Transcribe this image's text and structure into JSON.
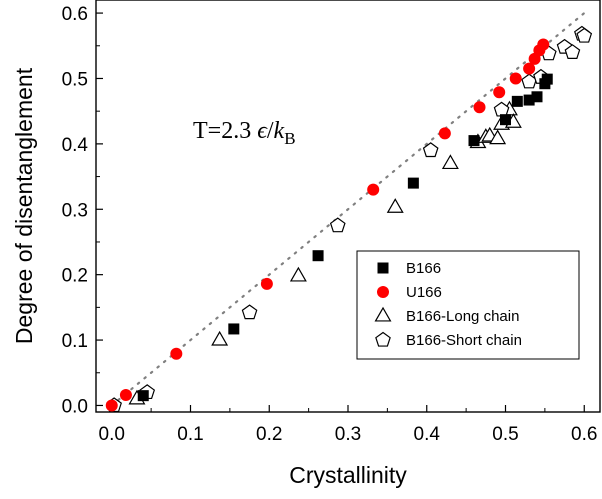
{
  "chart_data": {
    "type": "scatter",
    "title": "",
    "xlabel": "Crystallinity",
    "ylabel": "Degree of disentanglement",
    "xlim": [
      -0.02,
      0.62
    ],
    "ylim": [
      -0.01,
      0.62
    ],
    "xticks": [
      0.0,
      0.1,
      0.2,
      0.3,
      0.4,
      0.5,
      0.6
    ],
    "yticks": [
      0.0,
      0.1,
      0.2,
      0.3,
      0.4,
      0.5,
      0.6
    ],
    "xtick_labels": [
      "0.0",
      "0.1",
      "0.2",
      "0.3",
      "0.4",
      "0.5",
      "0.6"
    ],
    "ytick_labels": [
      "0.0",
      "0.1",
      "0.2",
      "0.3",
      "0.4",
      "0.5",
      "0.6"
    ],
    "grid": false,
    "legend_position": "bottom-right",
    "annotation": {
      "prefix": "T=2.3 ",
      "epsilon": "ϵ",
      "slash": "/",
      "k": "k",
      "sub": "B"
    },
    "reference_line": {
      "style": "dotted",
      "color": "#808080",
      "x": [
        0.0,
        0.6
      ],
      "y": [
        0.0,
        0.6
      ]
    },
    "series": [
      {
        "name": "B166",
        "marker": "square",
        "color": "#000000",
        "filled": true,
        "points": [
          [
            0.04,
            0.015
          ],
          [
            0.155,
            0.117
          ],
          [
            0.262,
            0.229
          ],
          [
            0.383,
            0.34
          ],
          [
            0.46,
            0.405
          ],
          [
            0.5,
            0.437
          ],
          [
            0.515,
            0.465
          ],
          [
            0.53,
            0.467
          ],
          [
            0.54,
            0.472
          ],
          [
            0.55,
            0.492
          ],
          [
            0.553,
            0.499
          ]
        ]
      },
      {
        "name": "U166",
        "marker": "circle",
        "color": "#ff0000",
        "filled": true,
        "points": [
          [
            0.0,
            0.0
          ],
          [
            0.018,
            0.016
          ],
          [
            0.082,
            0.079
          ],
          [
            0.197,
            0.186
          ],
          [
            0.332,
            0.33
          ],
          [
            0.423,
            0.416
          ],
          [
            0.467,
            0.456
          ],
          [
            0.492,
            0.479
          ],
          [
            0.513,
            0.5
          ],
          [
            0.53,
            0.515
          ],
          [
            0.537,
            0.53
          ],
          [
            0.543,
            0.543
          ],
          [
            0.548,
            0.552
          ]
        ]
      },
      {
        "name": "B166-Long chain",
        "marker": "triangle",
        "color": "#000000",
        "filled": false,
        "points": [
          [
            0.032,
            0.01
          ],
          [
            0.137,
            0.1
          ],
          [
            0.237,
            0.198
          ],
          [
            0.36,
            0.303
          ],
          [
            0.43,
            0.37
          ],
          [
            0.465,
            0.402
          ],
          [
            0.475,
            0.41
          ],
          [
            0.48,
            0.412
          ],
          [
            0.49,
            0.408
          ],
          [
            0.495,
            0.43
          ],
          [
            0.505,
            0.452
          ],
          [
            0.51,
            0.433
          ]
        ]
      },
      {
        "name": "B166-Short chain",
        "marker": "pentagon",
        "color": "#000000",
        "filled": false,
        "points": [
          [
            0.003,
            0.0
          ],
          [
            0.045,
            0.02
          ],
          [
            0.175,
            0.142
          ],
          [
            0.287,
            0.275
          ],
          [
            0.405,
            0.39
          ],
          [
            0.495,
            0.452
          ],
          [
            0.53,
            0.495
          ],
          [
            0.545,
            0.502
          ],
          [
            0.555,
            0.538
          ],
          [
            0.575,
            0.548
          ],
          [
            0.585,
            0.54
          ],
          [
            0.597,
            0.568
          ],
          [
            0.6,
            0.565
          ]
        ]
      }
    ]
  }
}
